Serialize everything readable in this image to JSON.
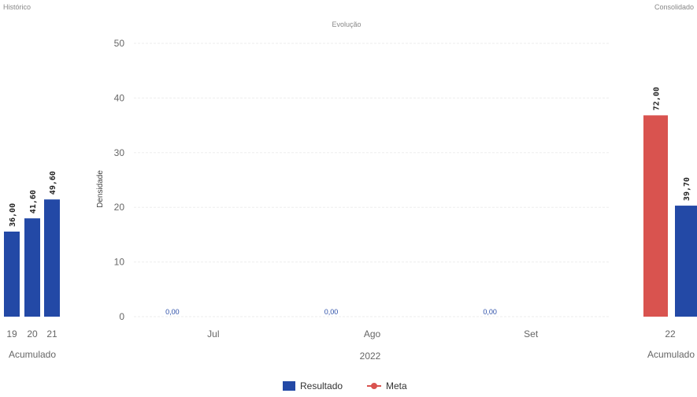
{
  "chart_data": [
    {
      "type": "bar",
      "panel": "left",
      "title": "Histórico",
      "categories": [
        "19",
        "20",
        "21"
      ],
      "series": [
        {
          "name": "Resultado",
          "values": [
            36.0,
            41.6,
            49.6
          ],
          "color": "#2349a6"
        }
      ],
      "value_labels": [
        "36,00",
        "41,60",
        "49,60"
      ],
      "xlabel": "Acumulado"
    },
    {
      "type": "bar",
      "panel": "center",
      "title": "Evolução",
      "categories": [
        "Jul",
        "Ago",
        "Set"
      ],
      "series": [
        {
          "name": "Resultado",
          "values": [
            0.0,
            0.0,
            0.0
          ],
          "color": "#2349a6"
        }
      ],
      "value_labels": [
        "0,00",
        "0,00",
        "0,00"
      ],
      "xlabel": "2022",
      "ylabel": "Densidade",
      "ylim": [
        0,
        50
      ],
      "yticks": [
        "0",
        "10",
        "20",
        "30",
        "40",
        "50"
      ],
      "grid": true
    },
    {
      "type": "bar",
      "panel": "right",
      "title": "Consolidado",
      "categories": [
        "22"
      ],
      "series": [
        {
          "name": "Meta",
          "values": [
            72.0
          ],
          "color": "#d9534f"
        },
        {
          "name": "Resultado",
          "values": [
            39.7
          ],
          "color": "#2349a6"
        }
      ],
      "value_labels": [
        "72,00",
        "39,70"
      ],
      "xlabel": "Acumulado"
    }
  ],
  "legend": {
    "placement": "bottom-center",
    "items": [
      {
        "label": "Resultado",
        "color": "#2349a6",
        "marker": "square"
      },
      {
        "label": "Meta",
        "color": "#d9534f",
        "marker": "line-dot"
      }
    ]
  }
}
